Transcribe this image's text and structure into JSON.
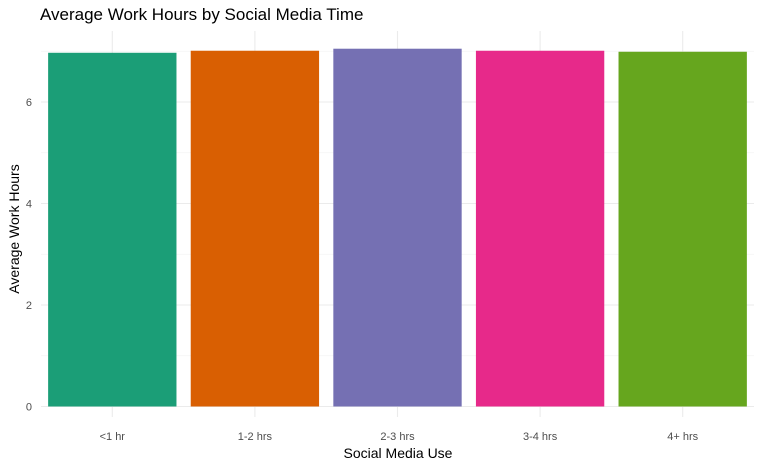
{
  "chart_data": {
    "type": "bar",
    "title": "Average Work Hours by Social Media Time",
    "xlabel": "Social Media Use",
    "ylabel": "Average Work Hours",
    "categories": [
      "<1 hr",
      "1-2 hrs",
      "2-3 hrs",
      "3-4 hrs",
      "4+ hrs"
    ],
    "values": [
      6.97,
      7.01,
      7.05,
      7.01,
      6.99
    ],
    "colors": [
      "#1b9e77",
      "#d95f02",
      "#7570b3",
      "#e7298a",
      "#66a61e"
    ],
    "ylim": [
      0,
      7.4
    ],
    "yticks": [
      0,
      2,
      4,
      6
    ],
    "grid": true,
    "legend": "none"
  }
}
